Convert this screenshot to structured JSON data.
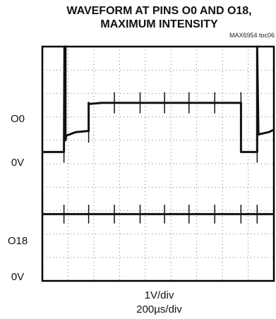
{
  "chart_data": {
    "type": "line",
    "title": "WAVEFORM AT PINS O0 AND O18,",
    "subtitle": "MAXIMUM INTENSITY",
    "figure_id": "MAX6954 toc06",
    "x_divisions": 9,
    "y_divisions": 10,
    "x_scale": "200µs/div",
    "y_scale": "1V/div",
    "grid": true,
    "channel_labels": [
      {
        "name": "O0",
        "level_div": 7.0
      },
      {
        "name": "0V",
        "level_div": 5.5
      },
      {
        "name": "O18",
        "level_div": 1.6
      },
      {
        "name": "0V",
        "level_div": 0.0
      }
    ],
    "series": [
      {
        "name": "O0",
        "x_div": [
          0,
          0.84,
          0.86,
          0.9,
          0.9,
          0.93,
          1.3,
          1.8,
          1.8,
          1.82,
          2.3,
          3.3,
          4.3,
          5.3,
          6.3,
          7.3,
          7.72,
          7.72,
          7.76,
          8.1,
          8.35,
          8.35,
          8.4,
          8.8,
          9
        ],
        "y_div": [
          5.5,
          5.5,
          10,
          10,
          6.0,
          6.2,
          6.35,
          6.4,
          7.6,
          7.55,
          7.6,
          7.6,
          7.6,
          7.6,
          7.6,
          7.6,
          7.6,
          5.5,
          5.5,
          5.5,
          5.5,
          10,
          6.25,
          6.35,
          6.45
        ],
        "spikes_x_div": [
          0.84,
          1.8,
          2.8,
          3.8,
          4.75,
          5.7,
          6.7,
          7.72,
          8.35
        ],
        "spike_height_div": 0.45
      },
      {
        "name": "O18",
        "x_div": [
          0,
          1,
          2,
          3,
          4,
          5,
          6,
          7,
          8,
          9
        ],
        "y_div": [
          2.85,
          2.85,
          2.85,
          2.85,
          2.85,
          2.85,
          2.85,
          2.85,
          2.85,
          2.85
        ],
        "spikes_x_div": [
          0.84,
          1.8,
          2.8,
          3.8,
          4.75,
          5.7,
          6.7,
          7.72,
          8.35
        ],
        "spike_height_div": 0.4
      }
    ],
    "xlabel": "1V/div",
    "xlabel2": "200µs/div",
    "ylabels": [
      "O0",
      "0V",
      "O18",
      "0V"
    ],
    "line_color": "#111111",
    "grid_color": "#777777"
  }
}
